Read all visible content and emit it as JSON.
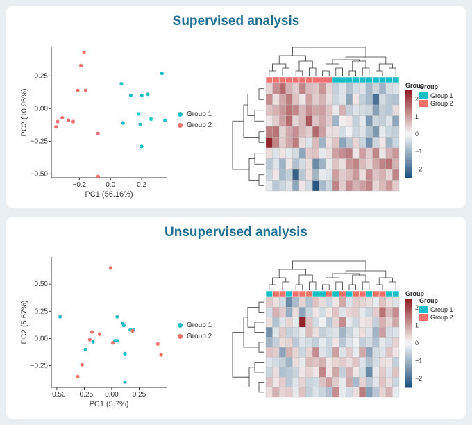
{
  "colors": {
    "group1": "#18bec5",
    "group2": "#f0706a",
    "heat_low": "#1d4f7c",
    "heat_mid": "#f7f7f7",
    "heat_high": "#8e1b22"
  },
  "panels": [
    {
      "title": "Supervised analysis",
      "legend": [
        "Group 1",
        "Group 2"
      ],
      "heatmap_legend": {
        "title": "Group",
        "annotation_title": "Group",
        "entries": [
          "Group 1",
          "Group 2"
        ],
        "ticks": [
          "2",
          "1",
          "0",
          "−1",
          "−2"
        ]
      }
    },
    {
      "title": "Unsupervised analysis",
      "legend": [
        "Group 1",
        "Group 2"
      ],
      "heatmap_legend": {
        "title": "Group",
        "annotation_title": "Group",
        "entries": [
          "Group 1",
          "Group 2"
        ],
        "ticks": [
          "2",
          "1",
          "0",
          "−1",
          "−2"
        ]
      }
    }
  ],
  "chart_data": [
    {
      "type": "scatter",
      "title": "Supervised analysis",
      "xlabel": "PC1 (56.16%)",
      "ylabel": "PC2 (10.95%)",
      "xlim": [
        -0.38,
        0.36
      ],
      "ylim": [
        -0.53,
        0.47
      ],
      "xticks": [
        -0.2,
        0.0,
        0.2
      ],
      "xtick_labels": [
        "−0.2",
        "0.0",
        "0.2"
      ],
      "yticks": [
        0.25,
        0.0,
        -0.25,
        -0.5
      ],
      "ytick_labels": [
        "0.25",
        "0.00",
        "−0.25",
        "−0.50"
      ],
      "series": [
        {
          "name": "Group 1",
          "points": [
            [
              0.07,
              0.19
            ],
            [
              0.13,
              0.1
            ],
            [
              0.2,
              0.1
            ],
            [
              0.24,
              0.11
            ],
            [
              0.33,
              0.27
            ],
            [
              0.08,
              -0.11
            ],
            [
              0.18,
              -0.04
            ],
            [
              0.26,
              -0.08
            ],
            [
              0.19,
              -0.12
            ],
            [
              0.35,
              -0.09
            ],
            [
              0.2,
              -0.29
            ]
          ]
        },
        {
          "name": "Group 2",
          "points": [
            [
              -0.17,
              0.43
            ],
            [
              -0.19,
              0.33
            ],
            [
              -0.21,
              0.14
            ],
            [
              -0.16,
              0.14
            ],
            [
              -0.31,
              -0.07
            ],
            [
              -0.27,
              -0.09
            ],
            [
              -0.34,
              -0.1
            ],
            [
              -0.35,
              -0.14
            ],
            [
              -0.24,
              -0.1
            ],
            [
              -0.08,
              -0.19
            ],
            [
              -0.08,
              -0.52
            ]
          ]
        }
      ]
    },
    {
      "type": "heatmap",
      "title": "Supervised analysis heatmap",
      "color_scale": [
        -2.5,
        2.5
      ],
      "column_groups": [
        "Group 2",
        "Group 2",
        "Group 2",
        "Group 2",
        "Group 2",
        "Group 2",
        "Group 2",
        "Group 2",
        "Group 2",
        "Group 2",
        "Group 1",
        "Group 1",
        "Group 1",
        "Group 1",
        "Group 1",
        "Group 1",
        "Group 1",
        "Group 1",
        "Group 1",
        "Group 1"
      ],
      "values": [
        [
          0.4,
          1.2,
          1.6,
          0.8,
          0.5,
          1.3,
          0.7,
          0.6,
          1.1,
          0.4,
          -0.6,
          -0.3,
          -0.8,
          -0.4,
          -0.3,
          -0.9,
          -0.5,
          -1.0,
          -0.4,
          -0.3
        ],
        [
          1.2,
          0.3,
          0.9,
          1.4,
          0.6,
          0.2,
          1.0,
          0.5,
          0.8,
          0.3,
          -0.5,
          -0.3,
          -1.2,
          0.2,
          -0.6,
          -0.9,
          -2.0,
          -0.4,
          -0.7,
          -0.8
        ],
        [
          0.6,
          0.8,
          1.1,
          1.5,
          1.3,
          0.7,
          1.2,
          0.9,
          1.0,
          0.6,
          -0.2,
          0.8,
          -0.6,
          -0.3,
          -0.4,
          -0.5,
          -1.3,
          -0.6,
          -0.7,
          0.3
        ],
        [
          0.2,
          0.5,
          1.0,
          1.6,
          0.4,
          0.7,
          1.8,
          0.6,
          0.9,
          0.5,
          -1.0,
          0.1,
          0.2,
          -0.6,
          -0.2,
          -1.4,
          -0.5,
          -0.6,
          -0.3,
          -1.2
        ],
        [
          1.4,
          1.5,
          0.4,
          0.9,
          1.2,
          0.7,
          0.5,
          1.6,
          1.0,
          0.3,
          0.3,
          -0.4,
          -0.1,
          -0.5,
          -0.3,
          -0.8,
          -1.4,
          -0.2,
          -0.5,
          -0.6
        ],
        [
          2.4,
          1.3,
          0.5,
          0.9,
          1.4,
          0.3,
          -0.3,
          0.7,
          -1.0,
          0.3,
          0.6,
          -1.2,
          -0.7,
          0.4,
          -0.5,
          -1.5,
          -0.5,
          0.2,
          -1.0,
          -0.5
        ],
        [
          0.3,
          -0.3,
          0.2,
          -0.2,
          -0.4,
          -1.2,
          0.5,
          0.6,
          -0.2,
          0.3,
          1.0,
          1.2,
          1.4,
          0.2,
          1.0,
          0.5,
          1.3,
          0.2,
          0.8,
          1.1
        ],
        [
          -0.7,
          -0.3,
          -1.0,
          0.2,
          -0.8,
          -0.4,
          0.3,
          -1.6,
          -1.0,
          -0.2,
          0.6,
          0.3,
          1.1,
          1.3,
          0.7,
          0.4,
          0.9,
          1.3,
          1.5,
          0.8
        ],
        [
          -0.5,
          0.2,
          -0.9,
          -0.6,
          -2.2,
          -0.7,
          0.3,
          -1.0,
          -0.2,
          -0.3,
          1.0,
          0.5,
          0.7,
          1.1,
          0.3,
          1.2,
          0.6,
          0.8,
          0.4,
          1.3
        ],
        [
          -0.2,
          -0.7,
          -0.5,
          -0.3,
          -1.2,
          0.2,
          -0.4,
          -2.4,
          -0.9,
          -0.5,
          1.3,
          0.5,
          1.2,
          0.8,
          1.0,
          1.3,
          0.4,
          0.7,
          1.1,
          0.5
        ]
      ]
    },
    {
      "type": "scatter",
      "title": "Unsupervised analysis",
      "xlabel": "PC1 (5.7%)",
      "ylabel": "PC2 (5.67%)",
      "xlim": [
        -0.55,
        0.5
      ],
      "ylim": [
        -0.45,
        0.75
      ],
      "xticks": [
        -0.5,
        -0.25,
        0.0,
        0.25
      ],
      "xtick_labels": [
        "−0.50",
        "−0.25",
        "0.00",
        "0.25"
      ],
      "yticks": [
        0.5,
        0.25,
        0.0,
        -0.25
      ],
      "ytick_labels": [
        "0.50",
        "0.25",
        "0.00",
        "−0.25"
      ],
      "series": [
        {
          "name": "Group 1",
          "points": [
            [
              -0.47,
              0.2
            ],
            [
              0.05,
              0.2
            ],
            [
              0.1,
              0.14
            ],
            [
              0.11,
              0.12
            ],
            [
              0.17,
              0.08
            ],
            [
              0.2,
              0.08
            ],
            [
              -0.17,
              -0.03
            ],
            [
              0.03,
              -0.02
            ],
            [
              0.05,
              -0.02
            ],
            [
              -0.24,
              -0.1
            ],
            [
              0.12,
              -0.14
            ],
            [
              0.12,
              -0.4
            ]
          ]
        },
        {
          "name": "Group 2",
          "points": [
            [
              -0.01,
              0.65
            ],
            [
              -0.18,
              0.06
            ],
            [
              -0.11,
              0.04
            ],
            [
              0.19,
              0.07
            ],
            [
              0.01,
              -0.04
            ],
            [
              -0.2,
              -0.01
            ],
            [
              0.42,
              -0.05
            ],
            [
              0.45,
              -0.15
            ],
            [
              -0.27,
              -0.24
            ],
            [
              -0.31,
              -0.35
            ]
          ]
        }
      ]
    },
    {
      "type": "heatmap",
      "title": "Unsupervised analysis heatmap",
      "color_scale": [
        -2.5,
        2.5
      ],
      "column_groups": [
        "Group 1",
        "Group 2",
        "Group 2",
        "Group 1",
        "Group 2",
        "Group 2",
        "Group 2",
        "Group 1",
        "Group 1",
        "Group 2",
        "Group 1",
        "Group 2",
        "Group 1",
        "Group 2",
        "Group 2",
        "Group 1",
        "Group 2",
        "Group 2",
        "Group 1",
        "Group 1"
      ],
      "values": [
        [
          0.5,
          0.3,
          -0.4,
          -1.6,
          -0.9,
          0.4,
          -0.8,
          0.6,
          0.3,
          -0.5,
          0.2,
          0.9,
          -0.3,
          0.5,
          0.4,
          0.3,
          -0.2,
          0.6,
          0.3,
          -0.3
        ],
        [
          -0.4,
          0.8,
          0.5,
          -1.1,
          0.3,
          -1.2,
          -0.5,
          0.2,
          -0.4,
          0.2,
          0.6,
          -0.3,
          0.4,
          0.5,
          -0.2,
          -0.5,
          0.5,
          1.5,
          0.7,
          1.2
        ],
        [
          0.3,
          -0.8,
          -0.3,
          0.4,
          -0.2,
          2.4,
          0.6,
          -0.4,
          -0.1,
          -0.7,
          0.4,
          1.2,
          -0.2,
          -0.5,
          0.2,
          0.3,
          -0.6,
          0.8,
          0.4,
          0.9
        ],
        [
          -1.5,
          -0.3,
          0.5,
          -0.6,
          -0.4,
          -0.2,
          0.7,
          0.3,
          -0.6,
          -0.4,
          -0.3,
          -1.0,
          -0.5,
          -0.2,
          0.3,
          -0.3,
          -1.0,
          1.0,
          -0.4,
          -0.3
        ],
        [
          -1.0,
          -0.6,
          0.3,
          0.4,
          -0.7,
          -0.3,
          -0.4,
          -0.6,
          -0.2,
          -0.5,
          0.2,
          -0.7,
          -0.3,
          -0.1,
          -0.6,
          -0.4,
          -0.8,
          -0.2,
          -0.4,
          0.4
        ],
        [
          0.6,
          0.5,
          -1.2,
          0.8,
          0.4,
          -0.5,
          0.4,
          1.2,
          -0.3,
          -0.5,
          1.0,
          -0.3,
          0.5,
          -0.2,
          0.9,
          -1.2,
          -0.4,
          -0.3,
          0.6,
          0.2
        ],
        [
          -0.3,
          -0.4,
          -0.6,
          -1.0,
          0.3,
          -0.2,
          0.7,
          0.6,
          0.8,
          0.2,
          0.4,
          0.5,
          0.3,
          0.6,
          -0.3,
          -0.8,
          -0.4,
          0.3,
          0.2,
          -0.6
        ],
        [
          -0.5,
          0.3,
          -0.8,
          -0.7,
          -0.5,
          0.2,
          0.4,
          0.2,
          1.3,
          0.2,
          0.9,
          -0.6,
          0.8,
          0.2,
          -0.4,
          -1.6,
          -0.2,
          0.5,
          -0.3,
          0.6
        ],
        [
          0.6,
          0.2,
          0.5,
          -0.7,
          -0.3,
          0.4,
          -0.5,
          -0.4,
          0.6,
          1.0,
          0.5,
          -0.2,
          0.9,
          -0.9,
          0.4,
          -0.7,
          -0.3,
          0.6,
          0.3,
          -0.5
        ],
        [
          0.3,
          0.8,
          0.4,
          0.5,
          -0.2,
          0.6,
          -0.6,
          -0.3,
          -0.5,
          -0.8,
          1.2,
          -0.2,
          -0.4,
          0.3,
          1.4,
          -1.3,
          -0.7,
          0.4,
          0.8,
          -0.2
        ]
      ]
    }
  ]
}
